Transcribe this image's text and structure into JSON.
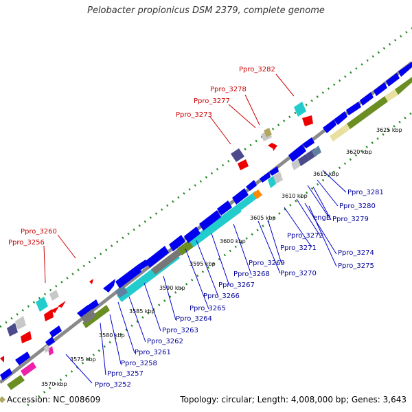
{
  "title": "Pelobacter propionicus DSM 2379, complete genome",
  "footer": {
    "accession": "Accession: NC_008609",
    "summary": "Topology: circular; Length: 4,008,000 bp; Genes: 3,643"
  },
  "ticks": [
    "3570 kbp",
    "3575 kbp",
    "3580 kbp",
    "3585 kbp",
    "3590 kbp",
    "3595 kbp",
    "3600 kbp",
    "3605 kbp",
    "3610 kbp",
    "3615 kbp",
    "3620 kbp",
    "3625 kbp"
  ],
  "labels_red": [
    "Ppro_3282",
    "Ppro_3278",
    "Ppro_3277",
    "Ppro_3273",
    "Ppro_3260",
    "Ppro_3256"
  ],
  "labels_blue": [
    "Ppro_3281",
    "Ppro_3280",
    "engB",
    "Ppro_3279",
    "Ppro_3272",
    "Ppro_3271",
    "Ppro_3274",
    "Ppro_3275",
    "Ppro_3269",
    "Ppro_3270",
    "Ppro_3268",
    "Ppro_3267",
    "Ppro_3266",
    "Ppro_3265",
    "Ppro_3264",
    "Ppro_3263",
    "Ppro_3262",
    "Ppro_3261",
    "Ppro_3258",
    "Ppro_3257",
    "Ppro_3252"
  ],
  "colors": {
    "backbone": "#8a8a8a",
    "forward_cds": "#0000ee",
    "reverse_cds": "#ee0000",
    "gc_high": "#22cccc",
    "gc_low": "#6b8e23",
    "navy": "#4b4b8c",
    "gray": "#777777",
    "tan": "#e8e0a0",
    "magenta": "#ee22aa",
    "orange": "#ff8800",
    "dots": "#228822",
    "label_red": "#cc0000",
    "label_blue": "#000099"
  }
}
